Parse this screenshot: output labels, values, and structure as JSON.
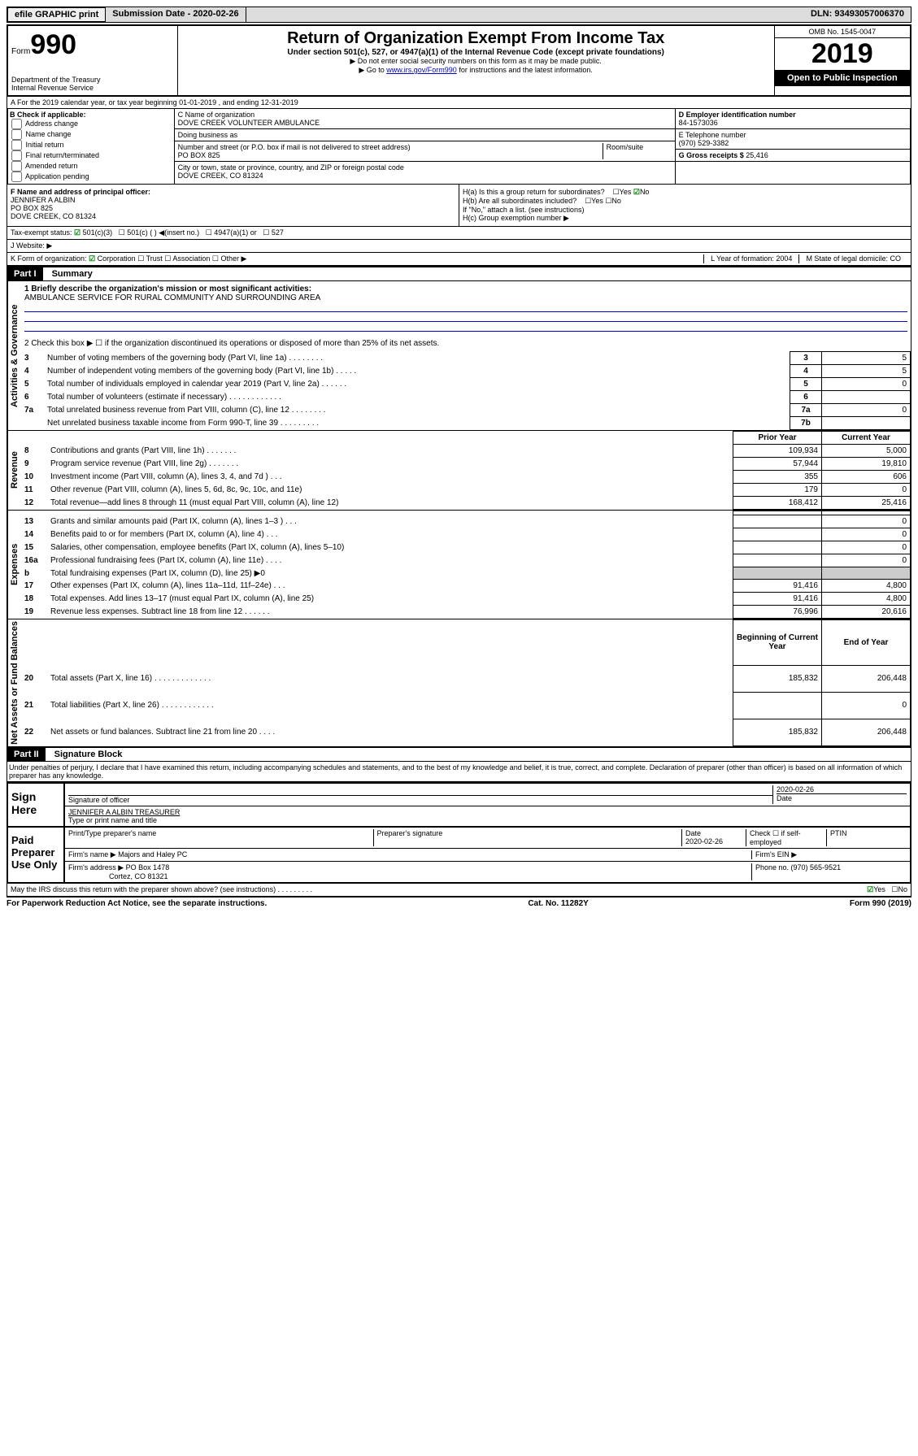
{
  "topbar": {
    "efile": "efile GRAPHIC print",
    "subdate_label": "Submission Date - 2020-02-26",
    "dln": "DLN: 93493057006370"
  },
  "header": {
    "form_word": "Form",
    "form_num": "990",
    "dept": "Department of the Treasury",
    "irs": "Internal Revenue Service",
    "title": "Return of Organization Exempt From Income Tax",
    "sub": "Under section 501(c), 527, or 4947(a)(1) of the Internal Revenue Code (except private foundations)",
    "line2": "▶ Do not enter social security numbers on this form as it may be made public.",
    "line3a": "▶ Go to ",
    "line3link": "www.irs.gov/Form990",
    "line3b": " for instructions and the latest information.",
    "omb": "OMB No. 1545-0047",
    "year": "2019",
    "inspect": "Open to Public Inspection"
  },
  "period": "A For the 2019 calendar year, or tax year beginning 01-01-2019   , and ending 12-31-2019",
  "boxB": {
    "label": "B Check if applicable:",
    "opts": [
      "Address change",
      "Name change",
      "Initial return",
      "Final return/terminated",
      "Amended return",
      "Application pending"
    ]
  },
  "boxC": {
    "name_label": "C Name of organization",
    "name": "DOVE CREEK VOLUNTEER AMBULANCE",
    "dba": "Doing business as",
    "addr_label": "Number and street (or P.O. box if mail is not delivered to street address)",
    "room": "Room/suite",
    "addr": "PO BOX 825",
    "city_label": "City or town, state or province, country, and ZIP or foreign postal code",
    "city": "DOVE CREEK, CO  81324"
  },
  "boxD": {
    "label": "D Employer identification number",
    "val": "84-1573036"
  },
  "boxE": {
    "label": "E Telephone number",
    "val": "(970) 529-3382"
  },
  "boxG": {
    "label": "G Gross receipts $",
    "val": "25,416"
  },
  "boxF": {
    "label": "F  Name and address of principal officer:",
    "name": "JENNIFER A ALBIN",
    "addr1": "PO BOX 825",
    "addr2": "DOVE CREEK, CO  81324"
  },
  "boxH": {
    "a": "H(a)  Is this a group return for subordinates?",
    "b": "H(b)  Are all subordinates included?",
    "note": "If \"No,\" attach a list. (see instructions)",
    "c": "H(c)  Group exemption number ▶"
  },
  "taxexempt": {
    "label": "Tax-exempt status:",
    "opt1": "501(c)(3)",
    "opt2": "501(c) (  ) ◀(insert no.)",
    "opt3": "4947(a)(1) or",
    "opt4": "527"
  },
  "website": "J   Website: ▶",
  "boxK": {
    "label": "K Form of organization:",
    "corp": "Corporation",
    "trust": "Trust",
    "assoc": "Association",
    "other": "Other ▶"
  },
  "boxL": {
    "label": "L Year of formation:",
    "val": "2004"
  },
  "boxM": {
    "label": "M State of legal domicile:",
    "val": "CO"
  },
  "part1": {
    "header": "Part I",
    "title": "Summary",
    "q1": "1  Briefly describe the organization's mission or most significant activities:",
    "q1val": "AMBULANCE SERVICE FOR RURAL COMMUNITY AND SURROUNDING AREA",
    "q2": "2   Check this box ▶ ☐  if the organization discontinued its operations or disposed of more than 25% of its net assets.",
    "rows_gov": [
      {
        "n": "3",
        "txt": "Number of voting members of the governing body (Part VI, line 1a)  .  .  .  .  .  .  .  .",
        "box": "3",
        "val": "5"
      },
      {
        "n": "4",
        "txt": "Number of independent voting members of the governing body (Part VI, line 1b)  .  .  .  .  .",
        "box": "4",
        "val": "5"
      },
      {
        "n": "5",
        "txt": "Total number of individuals employed in calendar year 2019 (Part V, line 2a)  .  .  .  .  .  .",
        "box": "5",
        "val": "0"
      },
      {
        "n": "6",
        "txt": "Total number of volunteers (estimate if necessary)  .  .  .  .  .  .  .  .  .  .  .  .",
        "box": "6",
        "val": ""
      },
      {
        "n": "7a",
        "txt": "Total unrelated business revenue from Part VIII, column (C), line 12  .  .  .  .  .  .  .  .",
        "box": "7a",
        "val": "0"
      },
      {
        "n": "",
        "txt": "Net unrelated business taxable income from Form 990-T, line 39  .  .  .  .  .  .  .  .  .",
        "box": "7b",
        "val": ""
      }
    ],
    "hdr_prior": "Prior Year",
    "hdr_curr": "Current Year",
    "rev": [
      {
        "n": "8",
        "txt": "Contributions and grants (Part VIII, line 1h)  .  .  .  .  .  .  .",
        "p": "109,934",
        "c": "5,000"
      },
      {
        "n": "9",
        "txt": "Program service revenue (Part VIII, line 2g)  .  .  .  .  .  .  .",
        "p": "57,944",
        "c": "19,810"
      },
      {
        "n": "10",
        "txt": "Investment income (Part VIII, column (A), lines 3, 4, and 7d )  .  .  .",
        "p": "355",
        "c": "606"
      },
      {
        "n": "11",
        "txt": "Other revenue (Part VIII, column (A), lines 5, 6d, 8c, 9c, 10c, and 11e)",
        "p": "179",
        "c": "0"
      },
      {
        "n": "12",
        "txt": "Total revenue—add lines 8 through 11 (must equal Part VIII, column (A), line 12)",
        "p": "168,412",
        "c": "25,416"
      }
    ],
    "exp": [
      {
        "n": "13",
        "txt": "Grants and similar amounts paid (Part IX, column (A), lines 1–3 )  .  .  .",
        "p": "",
        "c": "0"
      },
      {
        "n": "14",
        "txt": "Benefits paid to or for members (Part IX, column (A), line 4)  .  .  .",
        "p": "",
        "c": "0"
      },
      {
        "n": "15",
        "txt": "Salaries, other compensation, employee benefits (Part IX, column (A), lines 5–10)",
        "p": "",
        "c": "0"
      },
      {
        "n": "16a",
        "txt": "Professional fundraising fees (Part IX, column (A), line 11e)  .  .  .  .",
        "p": "",
        "c": "0"
      },
      {
        "n": "b",
        "txt": "Total fundraising expenses (Part IX, column (D), line 25) ▶0",
        "p": "",
        "c": "",
        "grey": true
      },
      {
        "n": "17",
        "txt": "Other expenses (Part IX, column (A), lines 11a–11d, 11f–24e)  .  .  .",
        "p": "91,416",
        "c": "4,800"
      },
      {
        "n": "18",
        "txt": "Total expenses. Add lines 13–17 (must equal Part IX, column (A), line 25)",
        "p": "91,416",
        "c": "4,800"
      },
      {
        "n": "19",
        "txt": "Revenue less expenses. Subtract line 18 from line 12  .  .  .  .  .  .",
        "p": "76,996",
        "c": "20,616"
      }
    ],
    "hdr_beg": "Beginning of Current Year",
    "hdr_end": "End of Year",
    "net": [
      {
        "n": "20",
        "txt": "Total assets (Part X, line 16)  .  .  .  .  .  .  .  .  .  .  .  .  .",
        "p": "185,832",
        "c": "206,448"
      },
      {
        "n": "21",
        "txt": "Total liabilities (Part X, line 26)  .  .  .  .  .  .  .  .  .  .  .  .",
        "p": "",
        "c": "0"
      },
      {
        "n": "22",
        "txt": "Net assets or fund balances. Subtract line 21 from line 20  .  .  .  .",
        "p": "185,832",
        "c": "206,448"
      }
    ]
  },
  "part2": {
    "header": "Part II",
    "title": "Signature Block",
    "perjury": "Under penalties of perjury, I declare that I have examined this return, including accompanying schedules and statements, and to the best of my knowledge and belief, it is true, correct, and complete. Declaration of preparer (other than officer) is based on all information of which preparer has any knowledge."
  },
  "sign": {
    "label": "Sign Here",
    "sig_of": "Signature of officer",
    "date": "2020-02-26",
    "date_lbl": "Date",
    "name": "JENNIFER A ALBIN TREASURER",
    "name_lbl": "Type or print name and title"
  },
  "paid": {
    "label": "Paid Preparer Use Only",
    "prep_name": "Print/Type preparer's name",
    "prep_sig": "Preparer's signature",
    "date_lbl": "Date",
    "date": "2020-02-26",
    "check": "Check ☐ if self-employed",
    "ptin": "PTIN",
    "firm_name_lbl": "Firm's name    ▶",
    "firm_name": "Majors and Haley PC",
    "firm_ein": "Firm's EIN ▶",
    "firm_addr_lbl": "Firm's address ▶",
    "firm_addr": "PO Box 1478",
    "firm_city": "Cortez, CO  81321",
    "phone": "Phone no. (970) 565-9521"
  },
  "discuss": "May the IRS discuss this return with the preparer shown above? (see instructions)  .  .  .  .  .  .  .  .  .",
  "footer": {
    "paperwork": "For Paperwork Reduction Act Notice, see the separate instructions.",
    "cat": "Cat. No. 11282Y",
    "form": "Form 990 (2019)"
  },
  "labels": {
    "gov": "Activities & Governance",
    "rev": "Revenue",
    "exp": "Expenses",
    "net": "Net Assets or Fund Balances"
  }
}
